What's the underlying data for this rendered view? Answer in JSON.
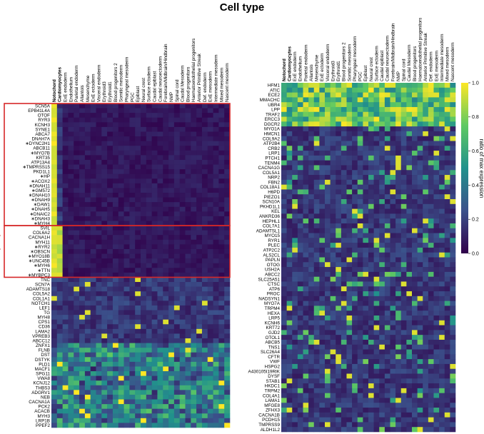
{
  "title": "Cell type",
  "colorbar": {
    "label": "ratio of max expression",
    "ticks": [
      "0.0",
      "0.2",
      "0.4",
      "0.6",
      "0.8",
      "1.0"
    ],
    "colors": [
      "#30004a",
      "#3b518b",
      "#21918c",
      "#5ec962",
      "#fde725"
    ]
  },
  "groups": [
    "Notochord",
    "Cardiomyocytes"
  ],
  "chart_data": [
    {
      "type": "heatmap",
      "title": "Cell type",
      "columns": [
        "Notochord",
        "Cardiomyocytes",
        "ExE endoderm",
        "Endothelium",
        "Parietal endoderm",
        "Allantois",
        "Mesenchyme",
        "ExE ectoderm",
        "Visceral endoderm",
        "Erythroid3",
        "Erythroid1",
        "Blood progenitors 2",
        "Somitic mesoderm",
        "Pharyngeal mesoderm",
        "PGC",
        "Epiblast",
        "Neural crest",
        "Surface ectoderm",
        "Caudal epiblast",
        "Caudal neuroectoderm",
        "Forebrain/Midbrain/Hindbrain",
        "NMP",
        "Spinal cord",
        "Caudal Mesoderm",
        "Blood progenitors",
        "Haematoendothelial progenitors",
        "Anterior Primitive Streak",
        "Def. endoderm",
        "ExE mesoderm",
        "Intermediate mesoderm",
        "Mixed mesoderm",
        "Nascent mesoderm"
      ],
      "bold_columns": [
        "Notochord",
        "Cardiomyocytes"
      ],
      "rows": [
        "SCN5A",
        "EPB41L4A",
        "OTOF",
        "RYR3",
        "KCNH3",
        "SYNE1",
        "ABCA7",
        "DNAH7A",
        "DYNC2H1",
        "ABCB11",
        "MYO7B",
        "KRT35",
        "ATP13A4",
        "TMPRSS15",
        "PKD1L1",
        "HP",
        "ACOX2",
        "DNAH11",
        "GM572",
        "DNAH10",
        "DNAH9",
        "DAW1",
        "DNAH5",
        "DNAIC2",
        "DNAH3",
        "MYH4",
        "SVIL",
        "COL6A2",
        "CACNA1H",
        "MYH11",
        "RYR2",
        "OBSCN",
        "MYO18B",
        "UNC45B",
        "MYH6",
        "TTN",
        "MYBPC3",
        "TNC",
        "SCN7A",
        "ADAMTS18",
        "COL5A2",
        "COL1A1",
        "NOTCH1",
        "LEF1",
        "TG",
        "MYH8",
        "CPS1",
        "CD36",
        "LAMA2",
        "VPREB3",
        "ABCC12",
        "ZNFX1",
        "FLNB",
        "DST",
        "DSTYK",
        "PLD1",
        "MACF1",
        "SPG11",
        "VWA8",
        "KCNJ12",
        "THBS3",
        "ADGRV1",
        "NEB",
        "CACNA1A",
        "PCK2",
        "ACACB",
        "MYH3",
        "LRP1B",
        "PPEF2"
      ],
      "starred_rows": [
        "DYNC2H1",
        "MYO7B",
        "TMPRSS15",
        "HP",
        "ACOX2",
        "DNAH11",
        "GM572",
        "DNAH10",
        "DNAH9",
        "DAW1",
        "DNAH5",
        "DNAIC2",
        "DNAH3",
        "MYH4",
        "RYR2",
        "OBSCN",
        "MYO18B",
        "UNC45B",
        "MYH6",
        "TTN",
        "MYBPC3"
      ],
      "row_groups": [
        {
          "name": "Notochord",
          "start": "SCN5A",
          "end": "MYH4"
        },
        {
          "name": "Cardiomyocytes",
          "start": "SVIL",
          "end": "MYBPC3"
        }
      ],
      "vrange": [
        0,
        1
      ]
    },
    {
      "type": "heatmap",
      "columns": [
        "Notochord",
        "Cardiomyocytes",
        "ExE endoderm",
        "Endothelium",
        "Parietal endoderm",
        "Allantois",
        "Mesenchyme",
        "ExE ectoderm",
        "Visceral endoderm",
        "Erythroid3",
        "Erythroid1",
        "Blood progenitors 2",
        "Somitic mesoderm",
        "Pharyngeal mesoderm",
        "PGC",
        "Epiblast",
        "Neural crest",
        "Surface ectoderm",
        "Caudal epiblast",
        "Caudal neuroectoderm",
        "Forebrain/Midbrain/Hindbrain",
        "NMP",
        "Spinal cord",
        "Caudal Mesoderm",
        "Blood progenitors",
        "Haematoendothelial progenitors",
        "Anterior Primitive Streak",
        "Def. endoderm",
        "ExE mesoderm",
        "Intermediate mesoderm",
        "Mixed mesoderm",
        "Nascent mesoderm"
      ],
      "bold_columns": [
        "Notochord",
        "Cardiomyocytes"
      ],
      "rows": [
        "HFM1",
        "ATIC",
        "ECE2",
        "MMACHC",
        "UBR4",
        "LPP",
        "TRAF2",
        "ERCC3",
        "DGCR2",
        "MYO1A",
        "HMCN1",
        "COL9A2",
        "ATP2B4",
        "CRB2",
        "LRP1",
        "PTCH1",
        "TENM4",
        "CACNA1G",
        "COL5A1",
        "NRP2",
        "FBN2",
        "COL18A1",
        "H6PD",
        "PIEZO1",
        "SCN10A",
        "PKHD1L1",
        "KEL",
        "ANKRD36",
        "HEPHL1",
        "COL7A1",
        "ADAMTSL1",
        "MYO15",
        "RYR1",
        "PLEC",
        "ATP2C2",
        "ALS2CL",
        "PAPLN",
        "OTOG",
        "USH2A",
        "ABCC2",
        "SLC25A51",
        "CTSC",
        "ATP6",
        "PROC",
        "NADSYN1",
        "MYO7A",
        "TRPM4",
        "HEXA",
        "LRP5",
        "KCNH6",
        "KRT72",
        "GJD2",
        "OTOL1",
        "ABCB5",
        "TNS1",
        "SLC26A4",
        "CFTR",
        "VWF",
        "HSPG2",
        "A430105I19RIK",
        "DYSF",
        "STAB1",
        "HKDC1",
        "TRPM2",
        "COL4A1",
        "LAMA1",
        "MFGE8",
        "ZFHX3",
        "CACNA1B",
        "PCDH15",
        "TMPRSS9",
        "ALDH1L2"
      ],
      "vrange": [
        0,
        1
      ]
    }
  ]
}
